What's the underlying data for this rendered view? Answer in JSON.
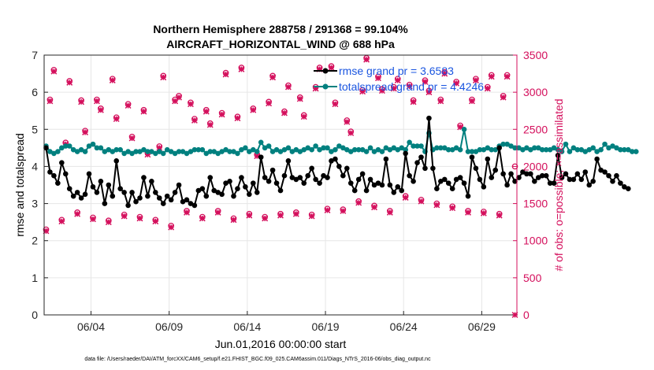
{
  "chart_data": {
    "type": "line",
    "title_line1": "Northern Hemisphere 288758 / 291368 = 99.104%",
    "title_line2": "AIRCRAFT_HORIZONTAL_WIND @ 688 hPa",
    "xlabel": "Jun.01,2016 00:00:00 start",
    "ylabel_left": "rmse and totalspread",
    "ylabel_right": "# of obs: o=possible; ×=assimilated",
    "footnote": "data file: /Users/raeder/DAI/ATM_forcXX/CAM6_setup/f.e21.FHIST_BGC.f09_025.CAM6assim.011/Diags_NTrS_2016-06/obs_diag_output.nc",
    "xlim": [
      1,
      31.25
    ],
    "xticks": [
      {
        "v": 4,
        "label": "06/04"
      },
      {
        "v": 9,
        "label": "06/09"
      },
      {
        "v": 14,
        "label": "06/14"
      },
      {
        "v": 19,
        "label": "06/19"
      },
      {
        "v": 24,
        "label": "06/24"
      },
      {
        "v": 29,
        "label": "06/29"
      }
    ],
    "ylim_left": [
      0,
      7
    ],
    "yticks_left": [
      "0",
      "1",
      "2",
      "3",
      "4",
      "5",
      "6",
      "7"
    ],
    "ylim_right": [
      0,
      3500
    ],
    "yticks_right": [
      "0",
      "500",
      "1000",
      "1500",
      "2000",
      "2500",
      "3000",
      "3500"
    ],
    "colors": {
      "rmse": "#000000",
      "spread": "#00807f",
      "obs": "#d40f5c",
      "legend_text": "#1a55e0"
    },
    "legend": [
      {
        "name": "rmse grand pr = 3.6583",
        "series": "rmse"
      },
      {
        "name": "totalspread grand pr = 4.4246",
        "series": "spread"
      }
    ],
    "x_start": 1.125,
    "x_step": 0.25,
    "rmse": [
      4.5,
      3.85,
      3.75,
      3.55,
      4.1,
      3.8,
      3.4,
      3.2,
      3.3,
      3.15,
      3.25,
      3.8,
      3.45,
      3.3,
      3.6,
      3.0,
      3.5,
      3.2,
      4.15,
      3.4,
      3.3,
      2.95,
      3.3,
      3.05,
      3.15,
      3.7,
      3.2,
      3.6,
      3.3,
      3.15,
      3.0,
      3.2,
      3.1,
      3.3,
      3.5,
      3.05,
      3.1,
      3.0,
      2.95,
      3.35,
      3.4,
      3.2,
      3.7,
      3.35,
      3.3,
      3.25,
      3.55,
      3.6,
      3.2,
      3.4,
      3.7,
      3.45,
      3.25,
      3.55,
      3.3,
      4.25,
      3.7,
      3.6,
      3.9,
      3.55,
      3.35,
      3.75,
      4.15,
      3.7,
      3.65,
      3.7,
      3.55,
      3.75,
      3.95,
      3.65,
      3.55,
      3.75,
      3.7,
      4.15,
      4.2,
      4.0,
      3.75,
      3.95,
      3.55,
      3.35,
      3.65,
      3.8,
      3.35,
      3.65,
      3.5,
      3.55,
      3.5,
      4.2,
      3.5,
      3.3,
      3.45,
      3.35,
      4.35,
      3.75,
      3.6,
      4.1,
      4.25,
      3.95,
      5.3,
      3.95,
      3.4,
      3.6,
      3.65,
      3.55,
      3.4,
      3.65,
      3.7,
      3.55,
      3.2,
      4.25,
      3.95,
      3.65,
      3.45,
      4.2,
      3.7,
      3.9,
      4.5,
      3.8,
      3.5,
      3.8,
      3.6,
      3.7,
      3.85,
      3.8,
      3.8,
      3.6,
      3.7,
      3.75,
      3.75,
      3.55,
      3.55,
      4.3,
      3.7,
      3.8,
      3.65,
      3.65,
      3.8,
      3.65,
      3.85,
      3.5,
      3.6,
      4.2,
      3.9,
      3.85,
      3.75,
      3.6,
      3.75,
      3.55,
      3.45,
      3.4
    ],
    "spread": [
      4.55,
      4.4,
      4.35,
      4.4,
      4.5,
      4.55,
      4.55,
      4.45,
      4.4,
      4.45,
      4.4,
      4.55,
      4.6,
      4.5,
      4.5,
      4.4,
      4.45,
      4.4,
      4.45,
      4.45,
      4.35,
      4.4,
      4.35,
      4.4,
      4.4,
      4.45,
      4.4,
      4.4,
      4.35,
      4.4,
      4.35,
      4.45,
      4.4,
      4.35,
      4.4,
      4.4,
      4.35,
      4.4,
      4.45,
      4.45,
      4.45,
      4.35,
      4.4,
      4.4,
      4.35,
      4.4,
      4.45,
      4.4,
      4.4,
      4.35,
      4.45,
      4.5,
      4.4,
      4.45,
      4.4,
      4.65,
      4.5,
      4.55,
      4.4,
      4.45,
      4.4,
      4.45,
      4.5,
      4.4,
      4.45,
      4.4,
      4.45,
      4.5,
      4.45,
      4.55,
      4.45,
      4.5,
      4.5,
      4.4,
      4.45,
      4.55,
      4.5,
      4.45,
      4.4,
      4.45,
      4.45,
      4.45,
      4.4,
      4.5,
      4.4,
      4.45,
      4.4,
      4.5,
      4.45,
      4.5,
      4.45,
      4.5,
      4.45,
      4.65,
      4.55,
      4.55,
      4.55,
      4.4,
      4.9,
      4.45,
      4.5,
      4.5,
      4.5,
      4.45,
      4.45,
      4.5,
      4.45,
      5.0,
      4.4,
      4.4,
      4.4,
      4.45,
      4.45,
      4.5,
      4.45,
      4.45,
      4.55,
      4.6,
      4.6,
      4.55,
      4.5,
      4.5,
      4.45,
      4.5,
      4.45,
      4.5,
      4.5,
      4.45,
      4.45,
      4.45,
      4.5,
      4.45,
      4.4,
      4.6,
      4.4,
      4.5,
      4.45,
      4.45,
      4.4,
      4.45,
      4.5,
      4.4,
      4.45,
      4.6,
      4.5,
      4.55,
      4.5,
      4.45,
      4.45,
      4.45,
      4.4,
      4.4
    ],
    "obs_times": [
      1.125,
      1.375,
      1.625,
      2.125,
      2.375,
      2.625,
      3.125,
      3.375,
      3.625,
      4.125,
      4.375,
      4.625,
      5.125,
      5.375,
      5.625,
      6.125,
      6.375,
      6.625,
      7.125,
      7.375,
      7.625,
      8.125,
      8.375,
      8.625,
      9.125,
      9.375,
      9.625,
      10.125,
      10.375,
      10.625,
      11.125,
      11.375,
      11.625,
      12.125,
      12.375,
      12.625,
      13.125,
      13.375,
      13.625,
      14.125,
      14.375,
      14.625,
      15.125,
      15.375,
      15.625,
      16.125,
      16.375,
      16.625,
      17.125,
      17.375,
      17.625,
      18.125,
      18.375,
      18.625,
      19.125,
      19.375,
      19.625,
      20.125,
      20.375,
      20.625,
      21.125,
      21.375,
      21.625,
      22.125,
      22.375,
      22.625,
      23.125,
      23.375,
      23.625,
      24.125,
      24.375,
      24.625,
      25.125,
      25.375,
      25.625,
      26.125,
      26.375,
      26.625,
      27.125,
      27.375,
      27.625,
      28.125,
      28.375,
      28.625,
      29.125,
      29.375,
      29.625,
      30.125,
      30.375,
      30.625,
      31.125
    ],
    "obs_possible": [
      1150,
      2900,
      3300,
      1280,
      2320,
      3150,
      1380,
      2890,
      2480,
      1310,
      2900,
      2780,
      1270,
      3180,
      2660,
      1350,
      2840,
      2400,
      1320,
      2760,
      2180,
      1280,
      2270,
      3220,
      1200,
      2900,
      2950,
      1400,
      2860,
      2640,
      1320,
      2760,
      2580,
      1400,
      2720,
      3260,
      1300,
      2670,
      3330,
      1360,
      2780,
      2160,
      1320,
      2870,
      3220,
      1360,
      2740,
      3090,
      1380,
      2930,
      2690,
      1350,
      3070,
      3330,
      1430,
      3350,
      2860,
      1420,
      2620,
      2470,
      1530,
      3030,
      3460,
      1470,
      3210,
      3040,
      1400,
      3070,
      3180,
      1600,
      3100,
      2890,
      1550,
      3160,
      3020,
      1500,
      2900,
      3270,
      1460,
      3140,
      2550,
      1400,
      2900,
      3180,
      1390,
      3070,
      3230,
      1360,
      2950,
      3230,
      2000
    ],
    "obs_assim": [
      1130,
      2880,
      3280,
      1260,
      2300,
      3130,
      1360,
      2870,
      2460,
      1290,
      2880,
      2760,
      1250,
      3160,
      2640,
      1330,
      2820,
      2380,
      1300,
      2740,
      2160,
      1260,
      2250,
      3200,
      1180,
      2880,
      2930,
      1380,
      2840,
      2620,
      1300,
      2740,
      2560,
      1380,
      2700,
      3240,
      1280,
      2650,
      3310,
      1340,
      2760,
      2140,
      1300,
      2850,
      3200,
      1340,
      2720,
      3070,
      1360,
      2910,
      2670,
      1330,
      3050,
      3310,
      1410,
      3330,
      2840,
      1400,
      2600,
      2450,
      1510,
      3010,
      3440,
      1450,
      3190,
      3020,
      1380,
      3050,
      3160,
      1580,
      3080,
      2870,
      1530,
      3140,
      3000,
      1480,
      2880,
      3250,
      1440,
      3120,
      2530,
      1380,
      2880,
      3160,
      1370,
      3050,
      3210,
      1340,
      2930,
      3210,
      0
    ]
  }
}
